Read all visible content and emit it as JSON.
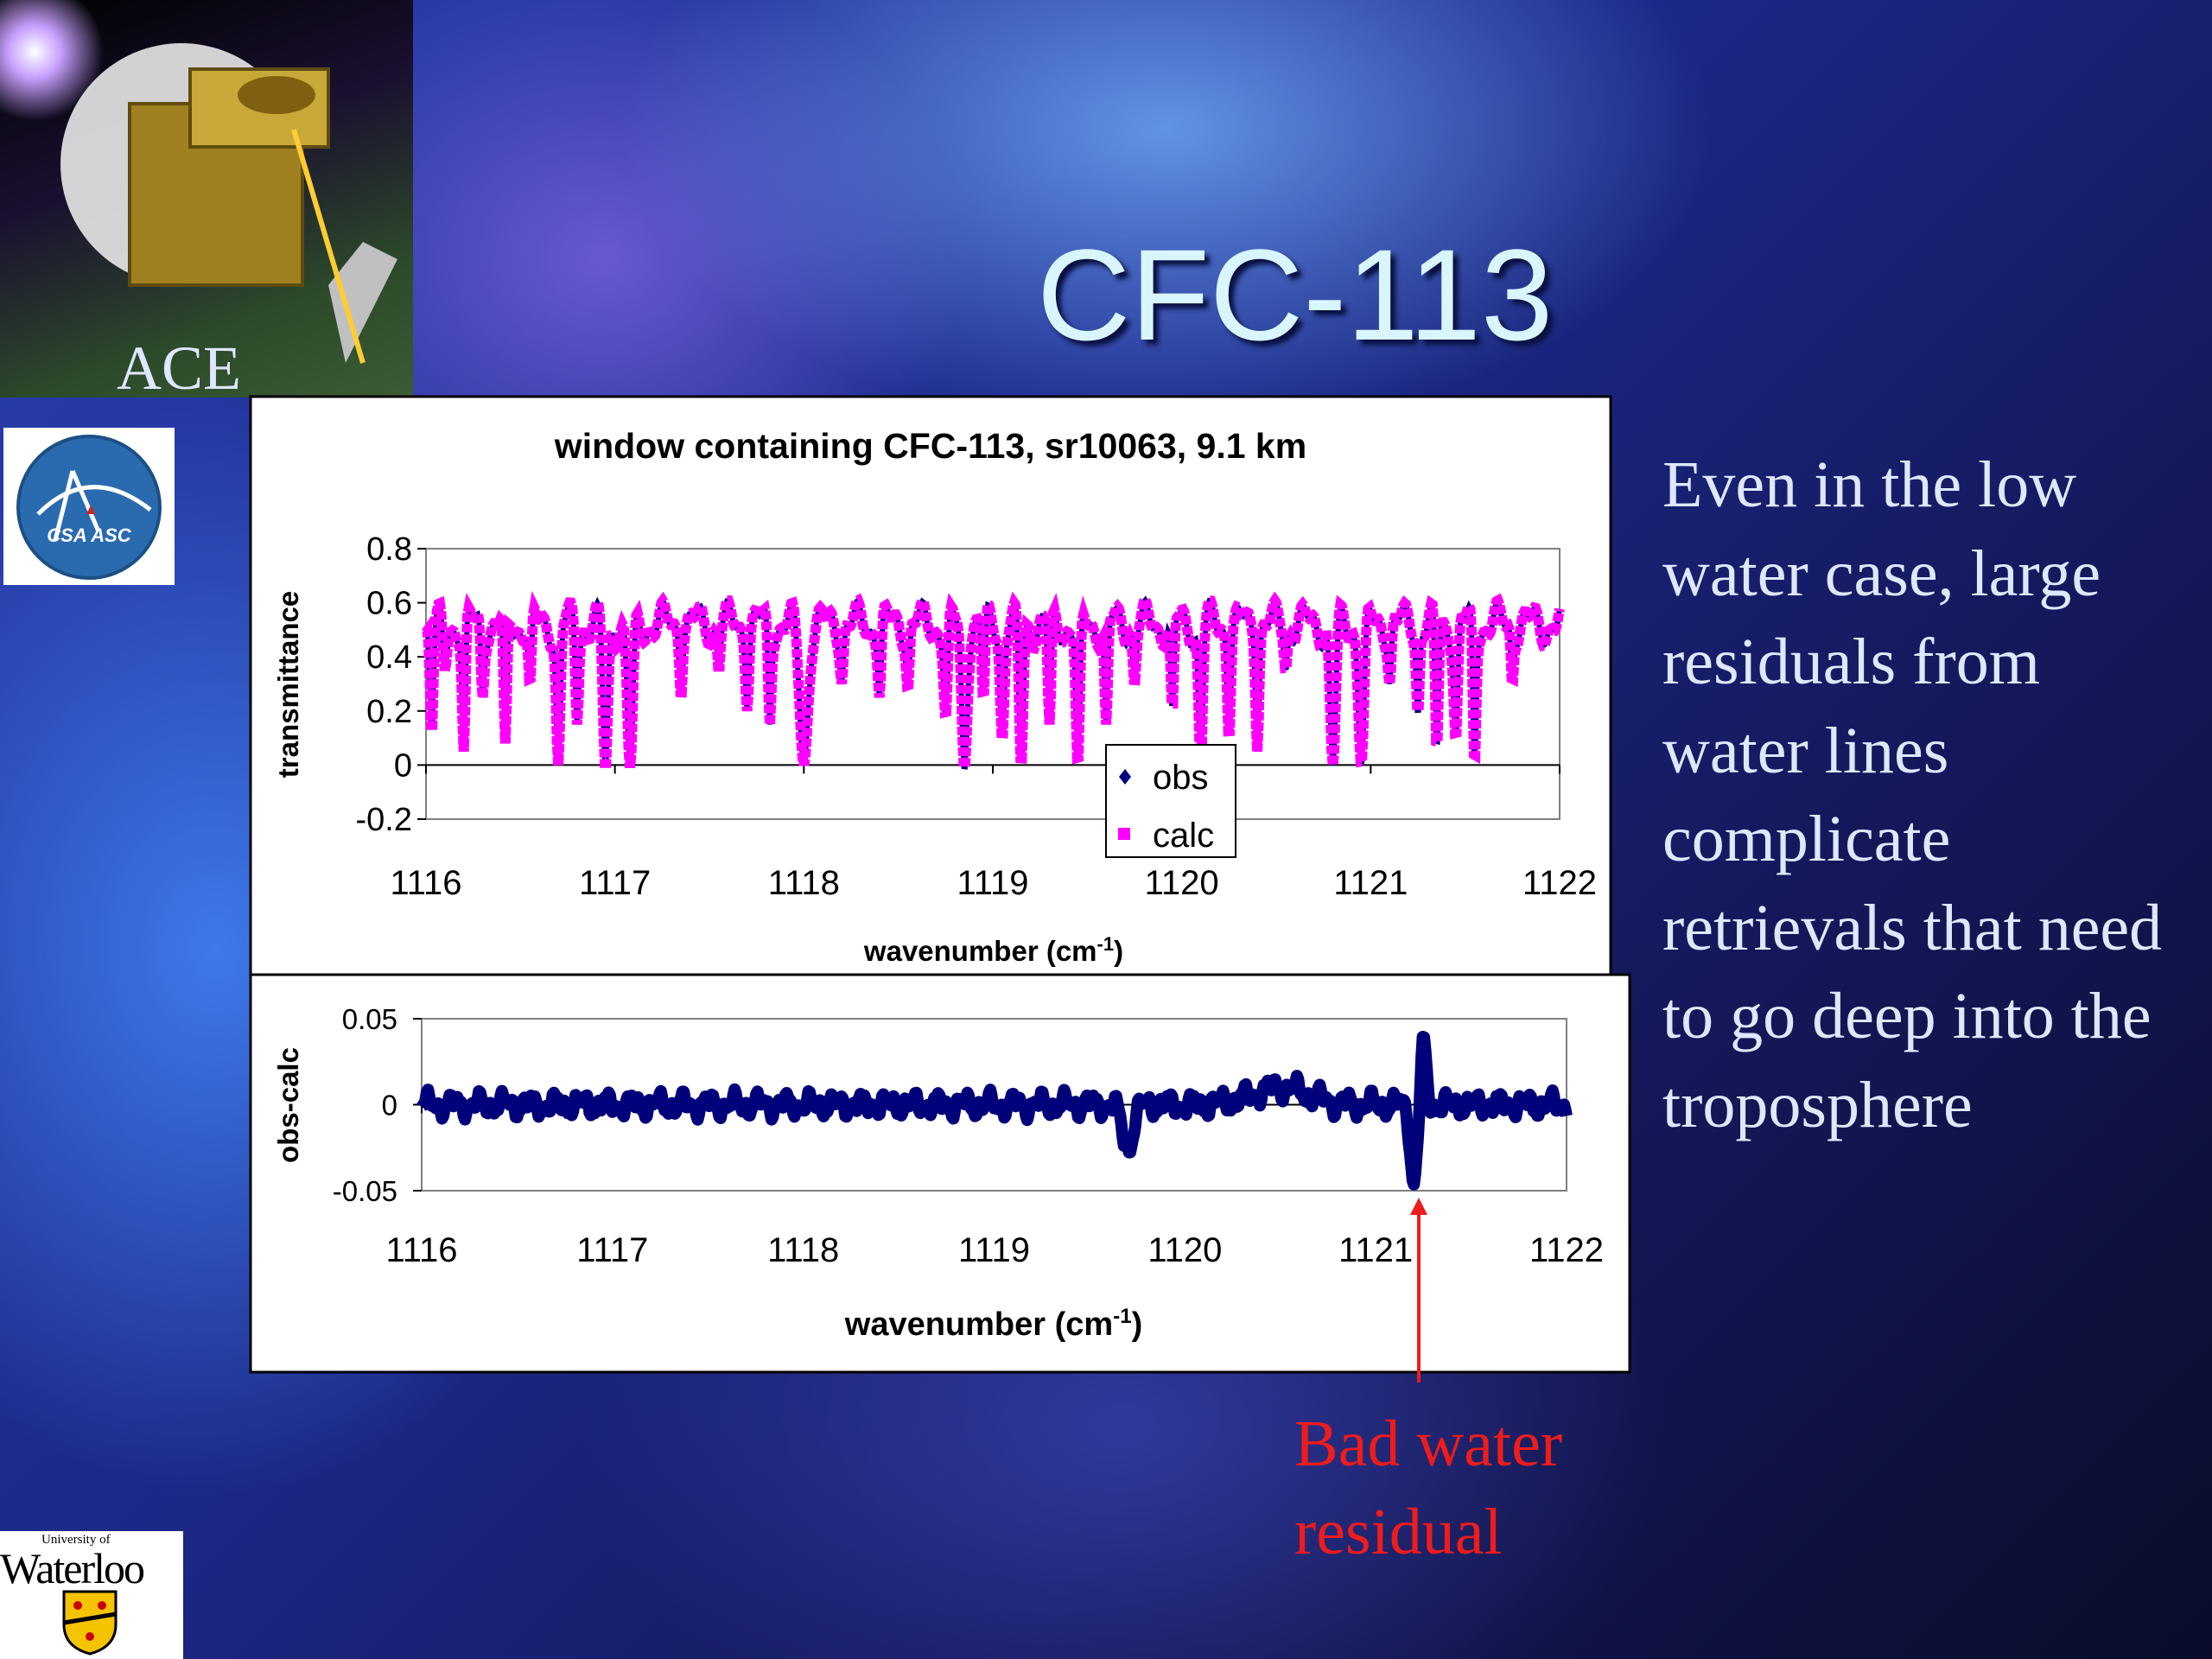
{
  "slide": {
    "title": "CFC-113",
    "ace_label": "ACE",
    "csa_label": "CSA ASC",
    "uw_small": "University of",
    "uw_big": "Waterloo",
    "side_text": "Even in the low water case, large residuals from water lines complicate retrievals that need to go deep into the troposphere",
    "annotation_line1": "Bad water",
    "annotation_line2": "residual"
  },
  "colors": {
    "obs": "#000080",
    "calc": "#ff00ff",
    "residual": "#00007a",
    "arrow": "#ee1c1c"
  },
  "chart_data": [
    {
      "type": "line",
      "title": "window containing CFC-113, sr10063, 9.1 km",
      "xlabel": "wavenumber (cm",
      "xlabel_sup": "-1",
      "xlabel_close": ")",
      "ylabel": "transmittance",
      "xlim": [
        1116,
        1122
      ],
      "ylim": [
        -0.2,
        0.8
      ],
      "xticks": [
        "1116",
        "1117",
        "1118",
        "1119",
        "1120",
        "1121",
        "1122"
      ],
      "yticks": [
        "0.8",
        "0.6",
        "0.4",
        "0.2",
        "0",
        "-0.2"
      ],
      "legend": [
        "obs",
        "calc"
      ],
      "legend_position": "bottom-center, inside plot",
      "baseline": 0.52,
      "dips": [
        [
          1116.03,
          0.12,
          0.012
        ],
        [
          1116.1,
          0.35,
          0.015
        ],
        [
          1116.2,
          0.05,
          0.012
        ],
        [
          1116.3,
          0.25,
          0.012
        ],
        [
          1116.42,
          0.08,
          0.012
        ],
        [
          1116.55,
          0.3,
          0.012
        ],
        [
          1116.7,
          0.0,
          0.015
        ],
        [
          1116.8,
          0.15,
          0.012
        ],
        [
          1116.95,
          -0.01,
          0.018
        ],
        [
          1117.08,
          -0.01,
          0.02
        ],
        [
          1117.35,
          0.25,
          0.01
        ],
        [
          1117.55,
          0.35,
          0.01
        ],
        [
          1117.7,
          0.2,
          0.012
        ],
        [
          1117.82,
          0.15,
          0.012
        ],
        [
          1118.0,
          0.0,
          0.03
        ],
        [
          1118.2,
          0.3,
          0.012
        ],
        [
          1118.4,
          0.25,
          0.012
        ],
        [
          1118.55,
          0.28,
          0.012
        ],
        [
          1118.75,
          0.18,
          0.015
        ],
        [
          1118.85,
          -0.02,
          0.02
        ],
        [
          1118.95,
          0.25,
          0.012
        ],
        [
          1119.05,
          0.1,
          0.015
        ],
        [
          1119.15,
          0.0,
          0.015
        ],
        [
          1119.3,
          0.15,
          0.012
        ],
        [
          1119.45,
          0.0,
          0.015
        ],
        [
          1119.6,
          0.15,
          0.012
        ],
        [
          1119.75,
          0.3,
          0.012
        ],
        [
          1119.95,
          0.2,
          0.012
        ],
        [
          1120.1,
          0.0,
          0.015
        ],
        [
          1120.25,
          0.1,
          0.012
        ],
        [
          1120.4,
          0.05,
          0.012
        ],
        [
          1120.55,
          0.35,
          0.012
        ],
        [
          1120.8,
          0.0,
          0.02
        ],
        [
          1120.95,
          0.0,
          0.02
        ],
        [
          1121.1,
          0.3,
          0.012
        ],
        [
          1121.25,
          0.18,
          0.012
        ],
        [
          1121.35,
          0.05,
          0.012
        ],
        [
          1121.45,
          0.1,
          0.015
        ],
        [
          1121.55,
          0.0,
          0.012
        ],
        [
          1121.75,
          0.3,
          0.01
        ]
      ]
    },
    {
      "type": "scatter",
      "xlabel": "wavenumber (cm",
      "xlabel_sup": "-1",
      "xlabel_close": ")",
      "ylabel": "obs-calc",
      "xlim": [
        1116,
        1122
      ],
      "ylim": [
        -0.05,
        0.05
      ],
      "xticks": [
        "1116",
        "1117",
        "1118",
        "1119",
        "1120",
        "1121",
        "1122"
      ],
      "yticks": [
        "0.05",
        "0",
        "-0.05"
      ],
      "features": [
        [
          1119.7,
          -0.025,
          0.04
        ],
        [
          1121.2,
          -0.045,
          0.025
        ],
        [
          1121.25,
          0.035,
          0.02
        ],
        [
          1120.5,
          0.01,
          0.2
        ]
      ]
    }
  ]
}
